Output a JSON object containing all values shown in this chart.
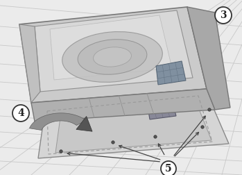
{
  "background_color": "#f0f0f0",
  "tile_line_color": "#c8c8c8",
  "tile_fill": "#e8e8e8",
  "fan_top_color": "#c8c8c8",
  "fan_dome_color": "#d0d0d0",
  "fan_body_dark": "#a0a0a0",
  "fan_front_color": "#b8b8b8",
  "fan_outline": "#707070",
  "base_color": "#d0d0d0",
  "base_inner": "#c0c0c0",
  "base_outline": "#888888",
  "panel_color": "#909090",
  "panel_outline": "#555555",
  "arrow_color": "#555555",
  "arrow_fill": "#777777",
  "curved_arrow_fill": "#888888",
  "callout_fill": "#ffffff",
  "callout_border": "#333333",
  "callout_text": "#222222",
  "label3": "3",
  "label4": "4",
  "label5": "5"
}
